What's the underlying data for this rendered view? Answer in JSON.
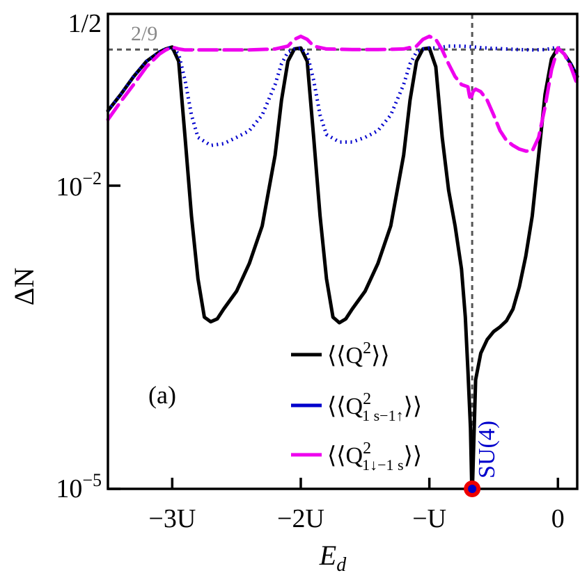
{
  "chart_data": {
    "type": "line",
    "panel_label": "(a)",
    "xlabel_main": "E",
    "xlabel_sub": "d",
    "ylabel": "ΔN",
    "y_scale": "log",
    "xlim": [
      -3.5,
      0.15
    ],
    "ylim": [
      1e-05,
      0.5
    ],
    "x_ticks": [
      {
        "value": -3,
        "label": "−3U"
      },
      {
        "value": -2,
        "label": "−2U"
      },
      {
        "value": -1,
        "label": "−U"
      },
      {
        "value": 0,
        "label": "0"
      }
    ],
    "y_ticks": [
      {
        "value": 0.5,
        "base": "1/2",
        "exp": ""
      },
      {
        "value": 0.01,
        "base": "10",
        "exp": "−2"
      },
      {
        "value": 1e-05,
        "base": "10",
        "exp": "−5"
      }
    ],
    "reference_lines": {
      "horizontal": {
        "value": 0.2222,
        "label": "2/9"
      },
      "vertical": {
        "value": -0.667
      }
    },
    "annotation": {
      "text": "SU(4)",
      "x": -0.667,
      "color": "#0000cc"
    },
    "marker": {
      "x": -0.667,
      "y": 1e-05,
      "outer_color": "#ee0000",
      "inner_color": "#0000cc"
    },
    "legend": {
      "placement": "bottom-center",
      "entries": [
        {
          "base": "⟨⟨Q",
          "sup": "2",
          "sub": "",
          "tail": "⟩⟩",
          "color": "#000000"
        },
        {
          "base": "⟨⟨Q",
          "sup": "2",
          "sub": "1 s−1↑",
          "tail": "⟩⟩",
          "color": "#0000cc"
        },
        {
          "base": "⟨⟨Q",
          "sup": "2",
          "sub": "1↓−1 s",
          "tail": "⟩⟩",
          "color": "#ee00ee"
        }
      ]
    },
    "series": [
      {
        "style": "solid",
        "color": "#000000",
        "x": [
          -3.5,
          -3.4,
          -3.3,
          -3.2,
          -3.1,
          -3.05,
          -3.0,
          -2.95,
          -2.9,
          -2.85,
          -2.8,
          -2.75,
          -2.7,
          -2.65,
          -2.6,
          -2.5,
          -2.4,
          -2.3,
          -2.2,
          -2.15,
          -2.1,
          -2.05,
          -2.0,
          -1.95,
          -1.9,
          -1.85,
          -1.8,
          -1.75,
          -1.7,
          -1.65,
          -1.6,
          -1.5,
          -1.4,
          -1.3,
          -1.2,
          -1.15,
          -1.1,
          -1.05,
          -1.0,
          -0.95,
          -0.9,
          -0.85,
          -0.8,
          -0.75,
          -0.72,
          -0.7,
          -0.68,
          -0.67
        ],
        "y": [
          0.055,
          0.08,
          0.12,
          0.17,
          0.21,
          0.225,
          0.235,
          0.17,
          0.03,
          0.005,
          0.0012,
          0.0005,
          0.00045,
          0.00048,
          0.0006,
          0.0009,
          0.0017,
          0.004,
          0.02,
          0.07,
          0.17,
          0.225,
          0.23,
          0.17,
          0.03,
          0.005,
          0.0012,
          0.0005,
          0.00044,
          0.00048,
          0.0006,
          0.0009,
          0.0017,
          0.004,
          0.02,
          0.07,
          0.17,
          0.225,
          0.23,
          0.15,
          0.03,
          0.009,
          0.004,
          0.0015,
          0.0005,
          0.00015,
          4e-05,
          1e-05
        ]
      },
      {
        "style": "solid",
        "color": "#000000",
        "x": [
          -0.665,
          -0.64,
          -0.6,
          -0.55,
          -0.5,
          -0.45,
          -0.4,
          -0.35,
          -0.3,
          -0.25,
          -0.2,
          -0.15,
          -0.1,
          -0.05,
          0.0,
          0.05,
          0.1,
          0.15
        ],
        "y": [
          1e-05,
          0.00012,
          0.00022,
          0.0003,
          0.00036,
          0.0004,
          0.00046,
          0.0006,
          0.001,
          0.002,
          0.005,
          0.02,
          0.08,
          0.18,
          0.23,
          0.2,
          0.16,
          0.12
        ]
      },
      {
        "style": "dotted",
        "color": "#0000cc",
        "x": [
          -3.5,
          -3.4,
          -3.3,
          -3.2,
          -3.1,
          -3.05,
          -3.0,
          -2.95,
          -2.9,
          -2.85,
          -2.8,
          -2.7,
          -2.6,
          -2.5,
          -2.4,
          -2.3,
          -2.2,
          -2.15,
          -2.1,
          -2.05,
          -2.0,
          -1.95,
          -1.9,
          -1.85,
          -1.8,
          -1.7,
          -1.6,
          -1.5,
          -1.4,
          -1.3,
          -1.2,
          -1.15,
          -1.1,
          -1.05,
          -1.0,
          -0.95,
          -0.9,
          -0.85,
          -0.8,
          -0.75,
          -0.7,
          -0.6,
          -0.5,
          -0.4,
          -0.3,
          -0.2,
          -0.1,
          -0.05,
          0.0,
          0.05,
          0.1,
          0.15
        ],
        "y": [
          0.055,
          0.08,
          0.12,
          0.17,
          0.21,
          0.225,
          0.235,
          0.2,
          0.11,
          0.05,
          0.03,
          0.025,
          0.026,
          0.03,
          0.035,
          0.05,
          0.1,
          0.16,
          0.21,
          0.225,
          0.23,
          0.2,
          0.11,
          0.05,
          0.032,
          0.027,
          0.027,
          0.03,
          0.035,
          0.05,
          0.1,
          0.16,
          0.21,
          0.225,
          0.23,
          0.23,
          0.235,
          0.24,
          0.24,
          0.24,
          0.238,
          0.232,
          0.228,
          0.225,
          0.222,
          0.22,
          0.222,
          0.228,
          0.235,
          0.2,
          0.16,
          0.12
        ]
      },
      {
        "style": "dashed",
        "color": "#ee00ee",
        "x": [
          -3.5,
          -3.4,
          -3.3,
          -3.2,
          -3.1,
          -3.05,
          -3.0,
          -2.95,
          -2.9,
          -2.8,
          -2.6,
          -2.4,
          -2.2,
          -2.1,
          -2.05,
          -2.0,
          -1.95,
          -1.9,
          -1.8,
          -1.6,
          -1.4,
          -1.2,
          -1.1,
          -1.05,
          -1.0,
          -0.95,
          -0.9,
          -0.85,
          -0.8,
          -0.75,
          -0.7,
          -0.69,
          -0.68,
          -0.66,
          -0.64,
          -0.6,
          -0.55,
          -0.5,
          -0.45,
          -0.4,
          -0.35,
          -0.3,
          -0.25,
          -0.2,
          -0.15,
          -0.1,
          -0.05,
          0.0,
          0.05,
          0.1,
          0.15
        ],
        "y": [
          0.045,
          0.068,
          0.1,
          0.15,
          0.2,
          0.22,
          0.235,
          0.225,
          0.22,
          0.22,
          0.22,
          0.22,
          0.225,
          0.24,
          0.28,
          0.3,
          0.28,
          0.24,
          0.225,
          0.222,
          0.222,
          0.225,
          0.24,
          0.28,
          0.3,
          0.28,
          0.22,
          0.16,
          0.12,
          0.1,
          0.095,
          0.08,
          0.07,
          0.085,
          0.09,
          0.085,
          0.07,
          0.05,
          0.035,
          0.028,
          0.025,
          0.023,
          0.022,
          0.022,
          0.03,
          0.06,
          0.14,
          0.23,
          0.2,
          0.15,
          0.1
        ]
      }
    ]
  }
}
